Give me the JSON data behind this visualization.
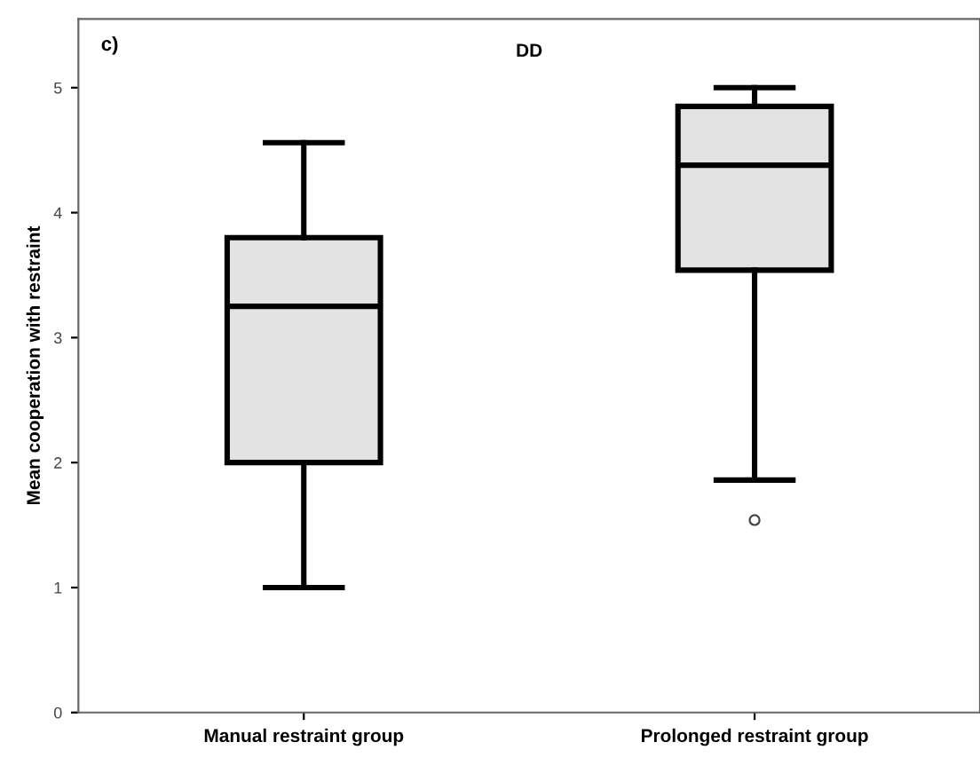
{
  "chart_data": {
    "type": "box",
    "title": "DD",
    "ylabel": "Mean cooperation with restraint",
    "annotations": [
      "c)"
    ],
    "categories": [
      "Manual restraint group",
      "Prolonged restraint group"
    ],
    "boxes": [
      {
        "low": 1.0,
        "q1": 2.0,
        "median": 3.25,
        "q3": 3.8,
        "high": 4.56
      },
      {
        "low": 1.86,
        "q1": 3.54,
        "median": 4.38,
        "q3": 4.85,
        "high": 5.0,
        "outliers": [
          1.54
        ]
      }
    ],
    "color": "#e3e3e3",
    "ylim": [
      0,
      5.55
    ],
    "yticks": [
      0,
      1,
      2,
      3,
      4,
      5
    ],
    "grid": false
  }
}
